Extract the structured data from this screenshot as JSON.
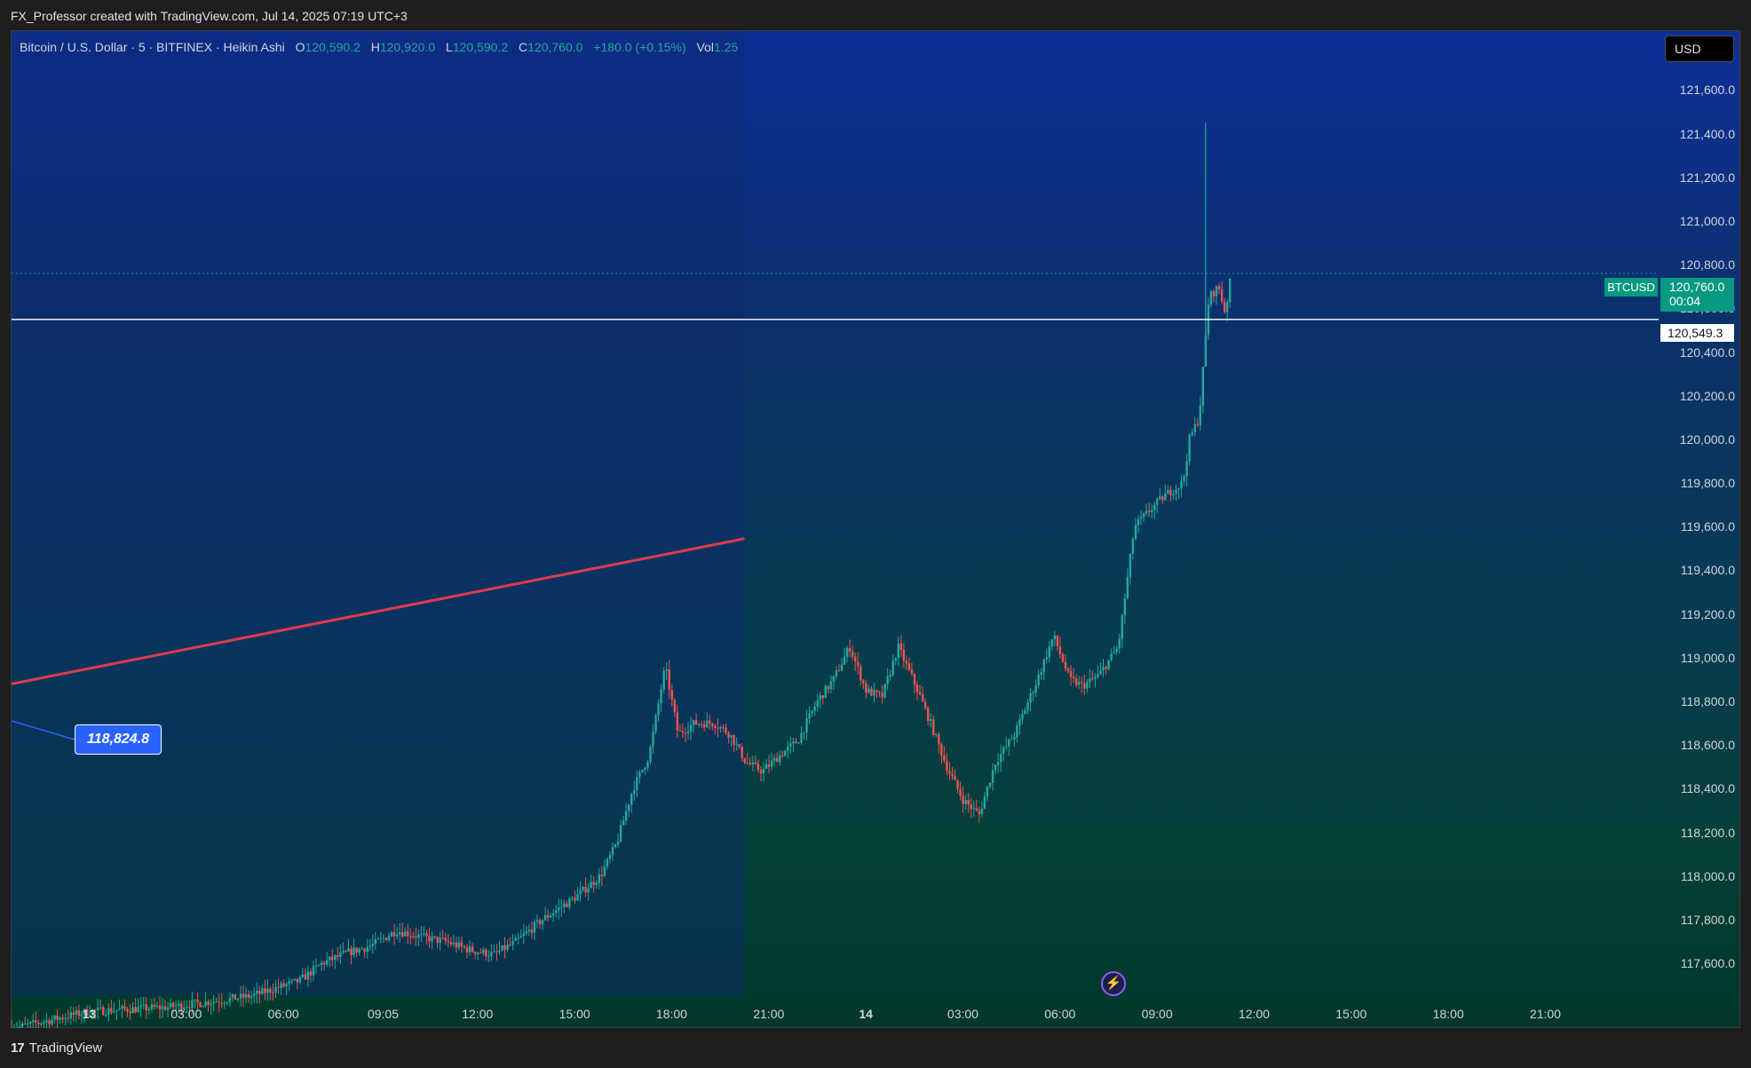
{
  "header": {
    "credit": "FX_Professor created with TradingView.com, Jul 14, 2025 07:19 UTC+3"
  },
  "legend": {
    "title": "Bitcoin / U.S. Dollar · 5 · BITFINEX · Heikin Ashi",
    "o_label": "O",
    "o_value": "120,590.2",
    "h_label": "H",
    "h_value": "120,920.0",
    "l_label": "L",
    "l_value": "120,590.2",
    "c_label": "C",
    "c_value": "120,760.0",
    "change": "+180.0 (+0.15%)",
    "vol_label": "Vol",
    "vol_value": "1.25"
  },
  "currency_button": "USD",
  "price_tag": {
    "symbol": "BTCUSD",
    "price": "120,760.0",
    "countdown": "00:04"
  },
  "crosshair_price": "120,549.3",
  "callout_label": "118,824.8",
  "brand": {
    "logo": "17",
    "name": "TradingView"
  },
  "colors": {
    "up": "#26a69a",
    "down": "#ef5350",
    "trendline": "#e03a4e",
    "accent": "#2962ff"
  },
  "chart_data": {
    "type": "candlestick",
    "subtitle": "Heikin Ashi, 5-minute",
    "y_ticks": [
      "121,600.0",
      "121,400.0",
      "121,200.0",
      "121,000.0",
      "120,800.0",
      "120,600.0",
      "120,400.0",
      "120,200.0",
      "120,000.0",
      "119,800.0",
      "119,600.0",
      "119,400.0",
      "119,200.0",
      "119,000.0",
      "118,800.0",
      "118,600.0",
      "118,400.0",
      "118,200.0",
      "118,000.0",
      "117,800.0",
      "117,600.0"
    ],
    "y_tick_values": [
      121600,
      121400,
      121200,
      121000,
      120800,
      120600,
      120400,
      120200,
      120000,
      119800,
      119600,
      119400,
      119200,
      119000,
      118800,
      118600,
      118400,
      118200,
      118000,
      117800,
      117600
    ],
    "x_ticks": [
      "13",
      "03:00",
      "06:00",
      "09:05",
      "12:00",
      "15:00",
      "18:00",
      "21:00",
      "14",
      "03:00",
      "06:00",
      "09:00",
      "12:00",
      "15:00",
      "18:00",
      "21:00"
    ],
    "x_tick_hours": [
      0,
      3,
      6,
      9.083,
      12,
      15,
      18,
      21,
      24,
      27,
      30,
      33,
      36,
      39,
      42,
      45
    ],
    "x_range_hours": [
      -2.4,
      48.5
    ],
    "y_range": [
      117450,
      121870
    ],
    "last_price": 120760.0,
    "crosshair_price": 120549.3,
    "callout_price": 118824.8,
    "trendline": [
      {
        "hours": -2.4,
        "price": 118880
      },
      {
        "hours": 20.25,
        "price": 119545
      }
    ],
    "shaded_range_end_hours": 20.25,
    "path": [
      [
        -2.4,
        117300
      ],
      [
        0,
        117380
      ],
      [
        2.5,
        117400
      ],
      [
        5,
        117450
      ],
      [
        6.5,
        117520
      ],
      [
        7.2,
        117600
      ],
      [
        8,
        117650
      ],
      [
        8.7,
        117680
      ],
      [
        9.5,
        117750
      ],
      [
        10.3,
        117720
      ],
      [
        11,
        117700
      ],
      [
        11.8,
        117660
      ],
      [
        12.5,
        117640
      ],
      [
        13.2,
        117700
      ],
      [
        14,
        117800
      ],
      [
        15,
        117900
      ],
      [
        15.8,
        118000
      ],
      [
        16.3,
        118150
      ],
      [
        16.8,
        118400
      ],
      [
        17.3,
        118550
      ],
      [
        17.8,
        118960
      ],
      [
        18.2,
        118650
      ],
      [
        18.7,
        118700
      ],
      [
        19.3,
        118700
      ],
      [
        19.8,
        118650
      ],
      [
        20.3,
        118520
      ],
      [
        20.8,
        118480
      ],
      [
        21.4,
        118560
      ],
      [
        21.9,
        118620
      ],
      [
        22.5,
        118800
      ],
      [
        23,
        118900
      ],
      [
        23.5,
        119050
      ],
      [
        24,
        118850
      ],
      [
        24.5,
        118820
      ],
      [
        25,
        119050
      ],
      [
        25.6,
        118850
      ],
      [
        26,
        118700
      ],
      [
        26.5,
        118500
      ],
      [
        27,
        118350
      ],
      [
        27.5,
        118280
      ],
      [
        28,
        118520
      ],
      [
        28.6,
        118650
      ],
      [
        29.3,
        118900
      ],
      [
        29.8,
        119100
      ],
      [
        30.3,
        118900
      ],
      [
        30.7,
        118870
      ],
      [
        31.2,
        118920
      ],
      [
        31.8,
        119050
      ],
      [
        32.3,
        119600
      ],
      [
        32.8,
        119680
      ],
      [
        33.3,
        119750
      ],
      [
        33.8,
        119800
      ],
      [
        34,
        120000
      ],
      [
        34.3,
        120100
      ],
      [
        34.6,
        120650
      ],
      [
        34.9,
        120700
      ],
      [
        35.1,
        120580
      ],
      [
        35.3,
        120760
      ]
    ]
  }
}
